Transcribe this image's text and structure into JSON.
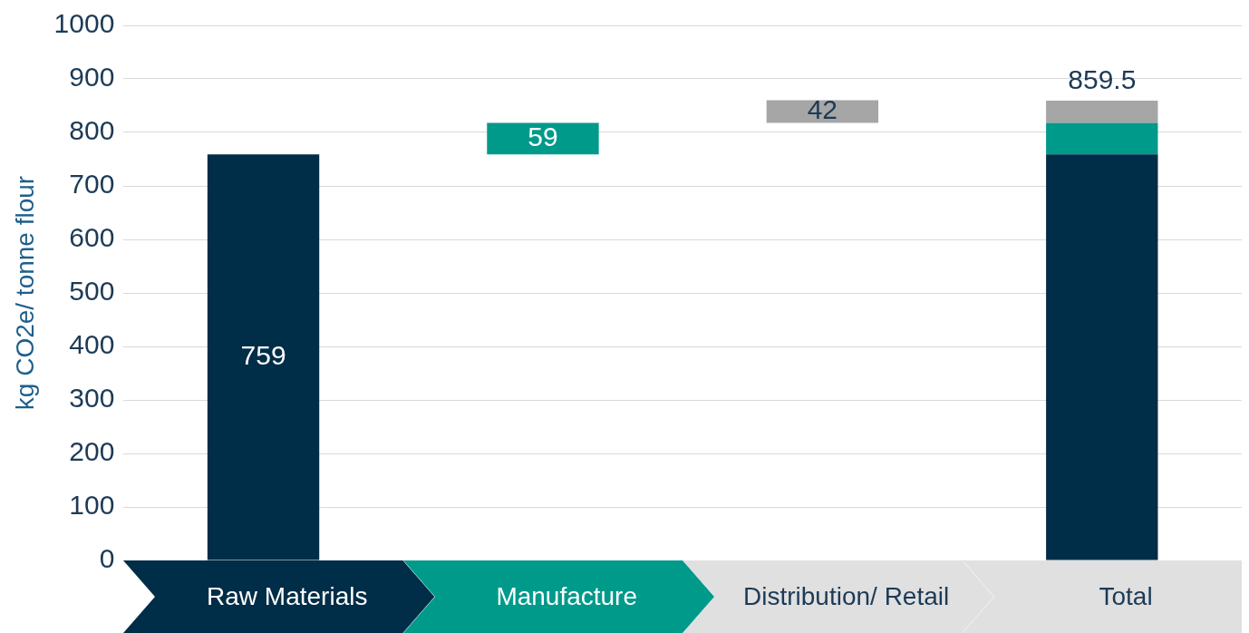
{
  "chart_data": {
    "type": "bar",
    "ylabel": "kg CO2e/ tonne flour",
    "categories": [
      "Raw Materials",
      "Manufacture",
      "Distribution/ Retail",
      "Total"
    ],
    "series": [
      {
        "color": "#002d47",
        "values": [
          759,
          null,
          null,
          759
        ],
        "base": [
          0,
          null,
          null,
          0
        ],
        "value_labels": [
          "759",
          null,
          null,
          null
        ]
      },
      {
        "color": "#009a8b",
        "values": [
          null,
          59,
          null,
          59
        ],
        "base": [
          null,
          759,
          null,
          759
        ],
        "value_labels": [
          null,
          "59",
          null,
          null
        ]
      },
      {
        "color": "#a6a6a6",
        "values": [
          null,
          null,
          42,
          41.5
        ],
        "base": [
          null,
          null,
          818,
          818
        ],
        "value_labels": [
          null,
          null,
          "42",
          null
        ]
      }
    ],
    "totals": [
      null,
      null,
      null,
      "859.5"
    ],
    "ylim": [
      0,
      1000
    ],
    "yticks": [
      0,
      100,
      200,
      300,
      400,
      500,
      600,
      700,
      800,
      900,
      1000
    ],
    "grid": "y"
  }
}
